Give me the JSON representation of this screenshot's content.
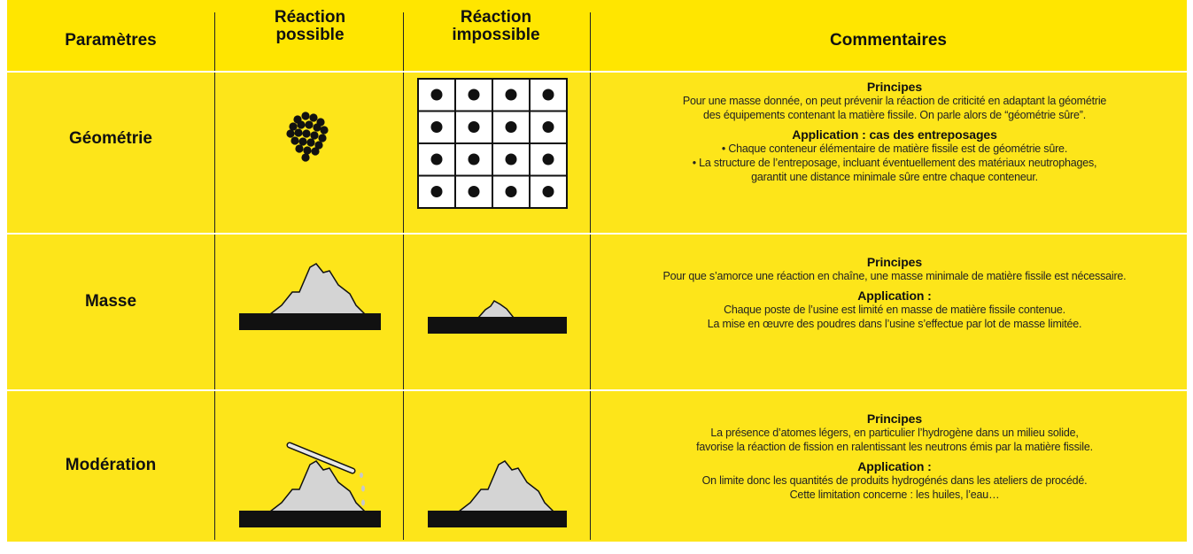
{
  "header": {
    "columns": [
      "Paramètres",
      "Réaction possible",
      "Réaction impossible",
      "Commentaires"
    ]
  },
  "rows": [
    {
      "parameter": "Géométrie",
      "principles_title": "Principes",
      "principles_lines": [
        "Pour une masse donnée, on peut prévenir la réaction de criticité en adaptant la géométrie",
        "des équipements contenant la matière fissile. On parle alors de “géométrie sûre”."
      ],
      "application_title": "Application : cas des entreposages",
      "application_lines": [
        "• Chaque conteneur élémentaire de matière fissile est de géométrie sûre.",
        "• La structure de l’entreposage, incluant éventuellement des matériaux neutrophages,",
        "garantit une distance minimale sûre entre chaque conteneur."
      ]
    },
    {
      "parameter": "Masse",
      "principles_title": "Principes",
      "principles_lines": [
        "Pour que s’amorce une réaction en chaîne, une masse minimale de matière fissile est nécessaire."
      ],
      "application_title": "Application :",
      "application_lines": [
        "Chaque poste de l’usine est limité en masse de matière fissile contenue.",
        "La mise en œuvre des poudres dans l’usine s’effectue par lot de masse limitée."
      ]
    },
    {
      "parameter": "Modération",
      "principles_title": "Principes",
      "principles_lines": [
        "La présence d’atomes légers, en particulier l’hydrogène dans un milieu solide,",
        "favorise la réaction de fission en ralentissant les neutrons émis par la matière fissile."
      ],
      "application_title": "Application :",
      "application_lines": [
        "On limite donc les quantités de produits hydrogénés dans les ateliers de procédé.",
        "Cette limitation concerne : les huiles, l’eau…"
      ]
    }
  ]
}
